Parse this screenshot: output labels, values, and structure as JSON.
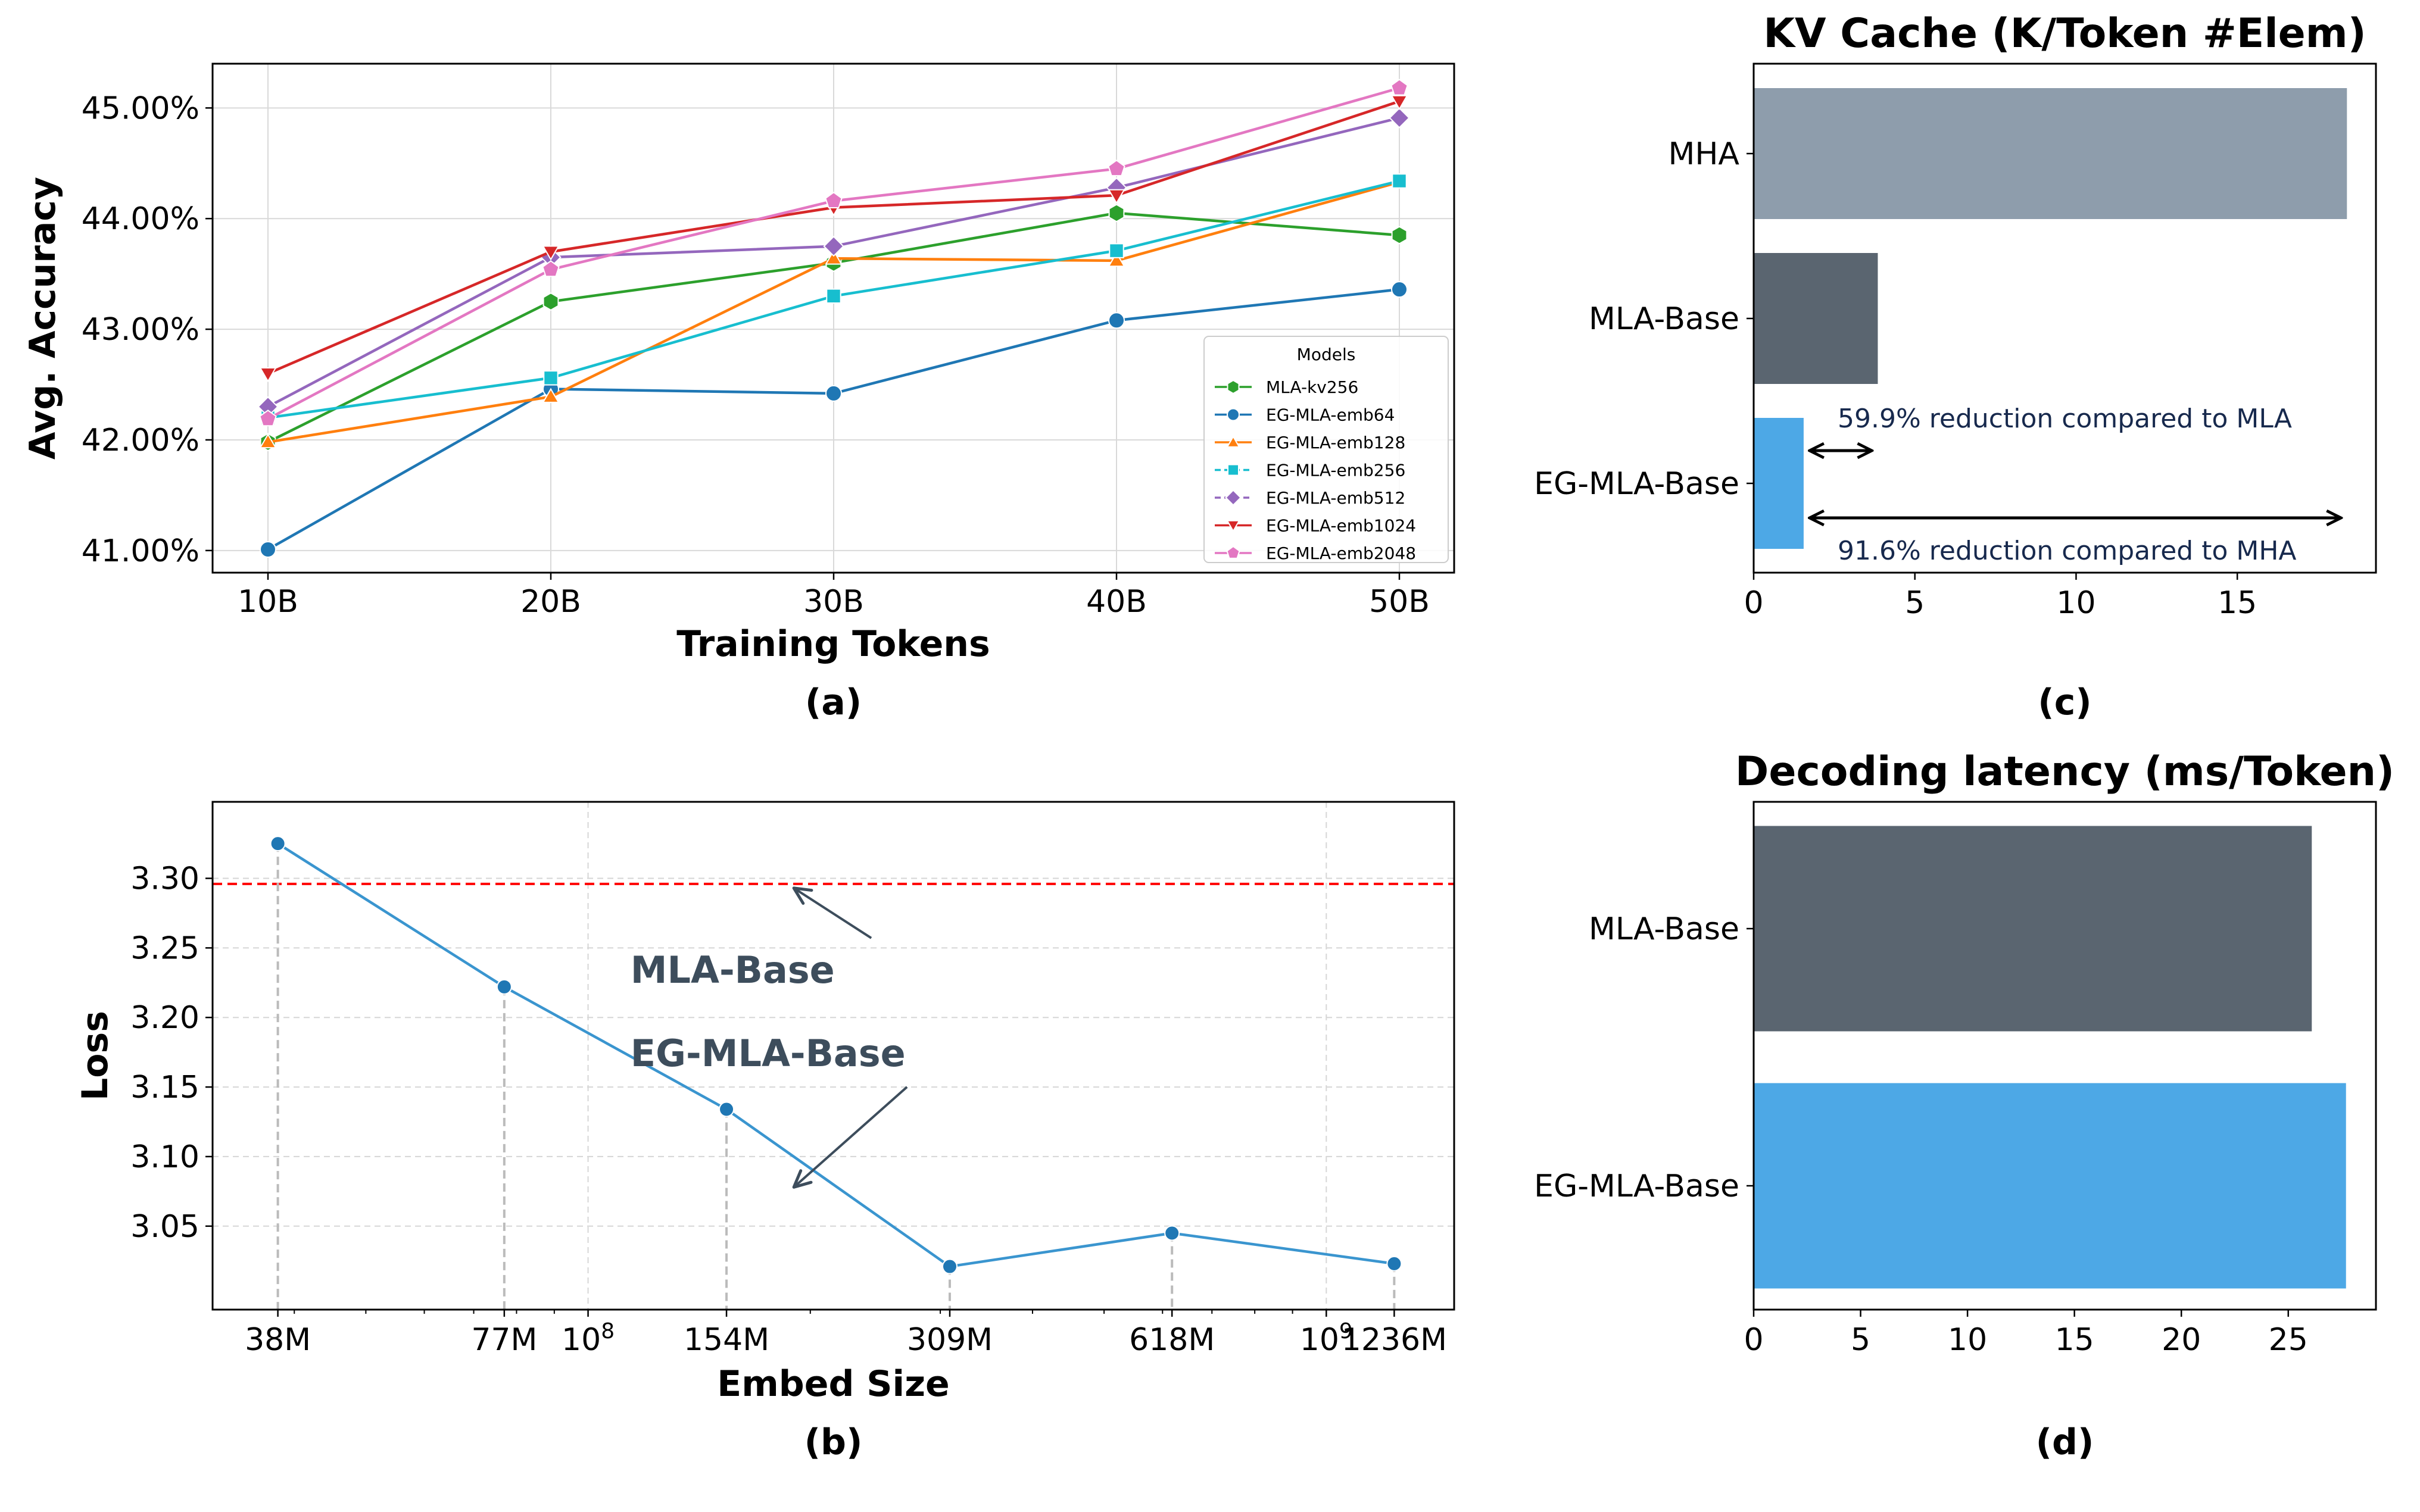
{
  "chart_data": [
    {
      "id": "a",
      "type": "line",
      "panel_label": "(a)",
      "title": "",
      "xlabel": "Training Tokens",
      "ylabel": "Avg. Accuracy",
      "categories": [
        "10B",
        "20B",
        "30B",
        "40B",
        "50B"
      ],
      "ylim": [
        40.8,
        45.4
      ],
      "yticks": [
        41,
        42,
        43,
        44,
        45
      ],
      "ytick_labels": [
        "41.00%",
        "42.00%",
        "43.00%",
        "44.00%",
        "45.00%"
      ],
      "grid": true,
      "legend": {
        "title": "Models",
        "placement": "lower-right"
      },
      "series": [
        {
          "name": "MLA-kv256",
          "color": "#2ca02c",
          "marker": "hexagon",
          "dashed": false,
          "values": [
            41.98,
            43.25,
            43.6,
            44.05,
            43.85
          ]
        },
        {
          "name": "EG-MLA-emb64",
          "color": "#1f77b4",
          "marker": "circle",
          "dashed": false,
          "values": [
            41.01,
            42.46,
            42.42,
            43.08,
            43.36
          ]
        },
        {
          "name": "EG-MLA-emb128",
          "color": "#ff7f0e",
          "marker": "triangle-up",
          "dashed": false,
          "values": [
            41.98,
            42.39,
            43.64,
            43.62,
            44.33
          ]
        },
        {
          "name": "EG-MLA-emb256",
          "color": "#17becf",
          "marker": "square",
          "dashed": true,
          "values": [
            42.2,
            42.56,
            43.3,
            43.71,
            44.34
          ]
        },
        {
          "name": "EG-MLA-emb512",
          "color": "#9467bd",
          "marker": "diamond",
          "dashed": true,
          "values": [
            42.3,
            43.65,
            43.75,
            44.28,
            44.91
          ]
        },
        {
          "name": "EG-MLA-emb1024",
          "color": "#d62728",
          "marker": "triangle-down",
          "dashed": false,
          "values": [
            42.6,
            43.7,
            44.1,
            44.21,
            45.06
          ]
        },
        {
          "name": "EG-MLA-emb2048",
          "color": "#e377c2",
          "marker": "pentagon",
          "dashed": false,
          "values": [
            42.19,
            43.54,
            44.16,
            44.45,
            45.18
          ]
        }
      ]
    },
    {
      "id": "b",
      "type": "line",
      "panel_label": "(b)",
      "title": "",
      "xlabel": "Embed Size",
      "ylabel": "Loss",
      "x_scale": "log",
      "x": [
        38000000,
        77000000,
        154000000,
        309000000,
        618000000,
        1236000000
      ],
      "x_labels": [
        "38M",
        "77M",
        "154M",
        "309M",
        "618M",
        "1236M"
      ],
      "x_power_ticks": [
        {
          "value": 100000000,
          "base": "10",
          "exp": "8"
        },
        {
          "value": 1000000000,
          "base": "10",
          "exp": "9"
        }
      ],
      "xlim": [
        31000000,
        1490000000
      ],
      "values": [
        3.325,
        3.222,
        3.134,
        3.021,
        3.045,
        3.023
      ],
      "ylim": [
        2.99,
        3.355
      ],
      "yticks": [
        3.05,
        3.1,
        3.15,
        3.2,
        3.25,
        3.3
      ],
      "ytick_labels": [
        "3.05",
        "3.10",
        "3.15",
        "3.20",
        "3.25",
        "3.30"
      ],
      "reference_line": {
        "value": 3.296,
        "color": "#ff0000"
      },
      "color": "#3a95cf",
      "grid": true,
      "annotations": [
        {
          "text": "MLA-Base",
          "text_at": [
            200000000,
            3.225
          ],
          "arrow_to": [
            190000000,
            3.293
          ]
        },
        {
          "text": "EG-MLA-Base",
          "text_at": [
            200000000,
            3.165
          ],
          "arrow_to": [
            190000000,
            3.078
          ]
        }
      ]
    },
    {
      "id": "c",
      "type": "bar",
      "orientation": "horizontal",
      "panel_label": "(c)",
      "title": "KV Cache (K/Token #Elem)",
      "xlabel": "",
      "ylabel": "",
      "categories": [
        "MHA",
        "MLA-Base",
        "EG-MLA-Base"
      ],
      "values": [
        18.4,
        3.85,
        1.55
      ],
      "colors": [
        "#8e9dac",
        "#5a6570",
        "#4da8e6"
      ],
      "xlim": [
        0,
        19.3
      ],
      "xticks": [
        0,
        5,
        10,
        15
      ],
      "grid": false,
      "annotations": [
        {
          "text": "59.9% reduction compared to MLA",
          "from": 1.55,
          "to": 3.85
        },
        {
          "text": "91.6% reduction compared to MHA",
          "from": 1.55,
          "to": 18.4
        }
      ]
    },
    {
      "id": "d",
      "type": "bar",
      "orientation": "horizontal",
      "panel_label": "(d)",
      "title": "Decoding latency (ms/Token)",
      "xlabel": "",
      "ylabel": "",
      "categories": [
        "MLA-Base",
        "EG-MLA-Base"
      ],
      "values": [
        26.1,
        27.7
      ],
      "colors": [
        "#5a6570",
        "#4da8e6"
      ],
      "xlim": [
        0,
        29.1
      ],
      "xticks": [
        0,
        5,
        10,
        15,
        20,
        25
      ],
      "grid": false
    }
  ]
}
